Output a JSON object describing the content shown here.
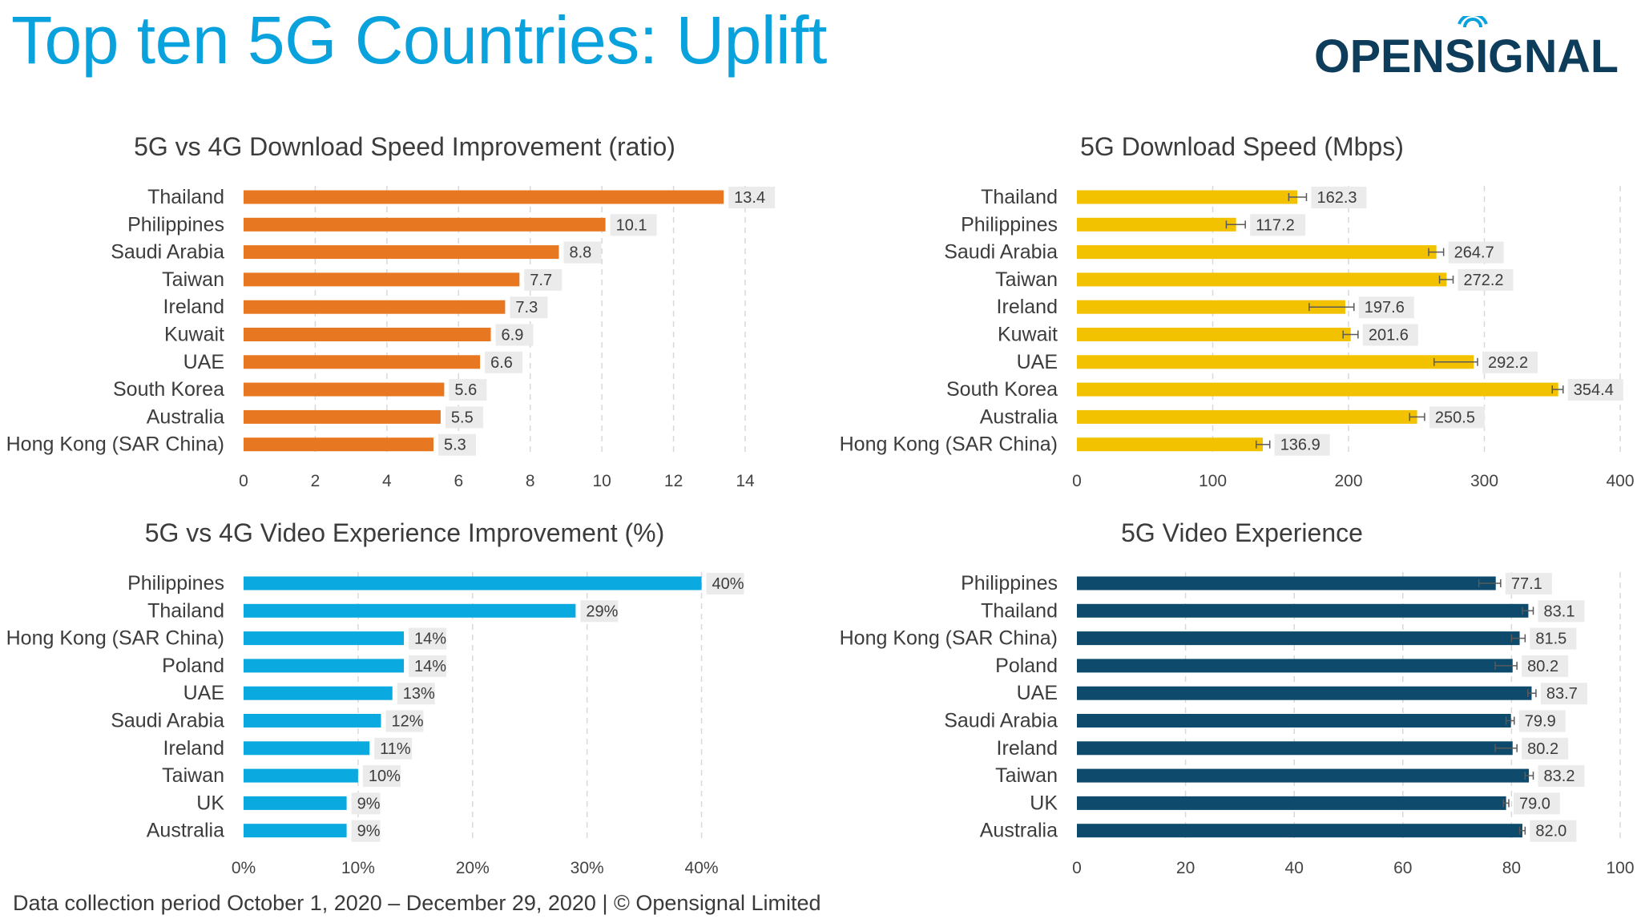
{
  "page": {
    "title": "Top ten 5G Countries: Uplift",
    "title_color": "#0aa2dc",
    "logo_text": "OPENSIGNAL",
    "logo_color": "#0e3d5c",
    "footer": "Data collection period October 1, 2020 – December 29, 2020  |  © Opensignal Limited"
  },
  "chart_data": [
    {
      "type": "bar",
      "orientation": "horizontal",
      "title": "5G vs 4G Download Speed Improvement (ratio)",
      "categories": [
        "Thailand",
        "Philippines",
        "Saudi Arabia",
        "Taiwan",
        "Ireland",
        "Kuwait",
        "UAE",
        "South Korea",
        "Australia",
        "Hong Kong (SAR China)"
      ],
      "values": [
        13.4,
        10.1,
        8.8,
        7.7,
        7.3,
        6.9,
        6.6,
        5.6,
        5.5,
        5.3
      ],
      "labels": [
        "13.4",
        "10.1",
        "8.8",
        "7.7",
        "7.3",
        "6.9",
        "6.6",
        "5.6",
        "5.5",
        "5.3"
      ],
      "xlim": [
        0,
        14
      ],
      "ticks": [
        "0",
        "2",
        "4",
        "6",
        "8",
        "10",
        "12",
        "14"
      ],
      "color": "#e87722",
      "error_bars": false,
      "grid": "vertical dashed"
    },
    {
      "type": "bar",
      "orientation": "horizontal",
      "title": "5G Download Speed (Mbps)",
      "categories": [
        "Thailand",
        "Philippines",
        "Saudi Arabia",
        "Taiwan",
        "Ireland",
        "Kuwait",
        "UAE",
        "South Korea",
        "Australia",
        "Hong Kong (SAR China)"
      ],
      "values": [
        162.3,
        117.2,
        264.7,
        272.2,
        197.6,
        201.6,
        292.2,
        354.4,
        250.5,
        136.9
      ],
      "labels": [
        "162.3",
        "117.2",
        "264.7",
        "272.2",
        "197.6",
        "201.6",
        "292.2",
        "354.4",
        "250.5",
        "136.9"
      ],
      "error_low": [
        156.0,
        110.0,
        259.0,
        267.0,
        171.0,
        196.0,
        263.0,
        350.0,
        245.0,
        132.0
      ],
      "error_high": [
        169.0,
        124.0,
        270.0,
        277.0,
        204.0,
        207.0,
        295.0,
        358.0,
        256.0,
        142.0
      ],
      "xlim": [
        0,
        400
      ],
      "ticks": [
        "0",
        "100",
        "200",
        "300",
        "400"
      ],
      "color": "#f2c200",
      "error_bars": true,
      "grid": "vertical dashed"
    },
    {
      "type": "bar",
      "orientation": "horizontal",
      "title": "5G vs 4G Video Experience Improvement (%)",
      "categories": [
        "Philippines",
        "Thailand",
        "Hong Kong (SAR China)",
        "Poland",
        "UAE",
        "Saudi Arabia",
        "Ireland",
        "Taiwan",
        "UK",
        "Australia"
      ],
      "values": [
        40,
        29,
        14,
        14,
        13,
        12,
        11,
        10,
        9,
        9
      ],
      "labels": [
        "40%",
        "29%",
        "14%",
        "14%",
        "13%",
        "12%",
        "11%",
        "10%",
        "9%",
        "9%"
      ],
      "xlim": [
        0,
        45
      ],
      "ticks": [
        "0%",
        "10%",
        "20%",
        "30%",
        "40%"
      ],
      "tick_step": 10,
      "color": "#0aa9e0",
      "error_bars": false,
      "grid": "vertical dashed"
    },
    {
      "type": "bar",
      "orientation": "horizontal",
      "title": "5G Video Experience",
      "categories": [
        "Philippines",
        "Thailand",
        "Hong Kong (SAR China)",
        "Poland",
        "UAE",
        "Saudi Arabia",
        "Ireland",
        "Taiwan",
        "UK",
        "Australia"
      ],
      "values": [
        77.1,
        83.1,
        81.5,
        80.2,
        83.7,
        79.9,
        80.2,
        83.2,
        79.0,
        82.0
      ],
      "labels": [
        "77.1",
        "83.1",
        "81.5",
        "80.2",
        "83.7",
        "79.9",
        "80.2",
        "83.2",
        "79.0",
        "82.0"
      ],
      "error_low": [
        74.0,
        82.0,
        80.0,
        77.0,
        83.0,
        79.0,
        77.0,
        82.5,
        78.5,
        81.5
      ],
      "error_high": [
        78.0,
        84.0,
        82.5,
        81.0,
        84.5,
        80.5,
        81.0,
        84.0,
        79.5,
        82.5
      ],
      "xlim": [
        0,
        100
      ],
      "ticks": [
        "0",
        "20",
        "40",
        "60",
        "80",
        "100"
      ],
      "color": "#0d4a6b",
      "error_bars": true,
      "grid": "vertical dashed"
    }
  ]
}
